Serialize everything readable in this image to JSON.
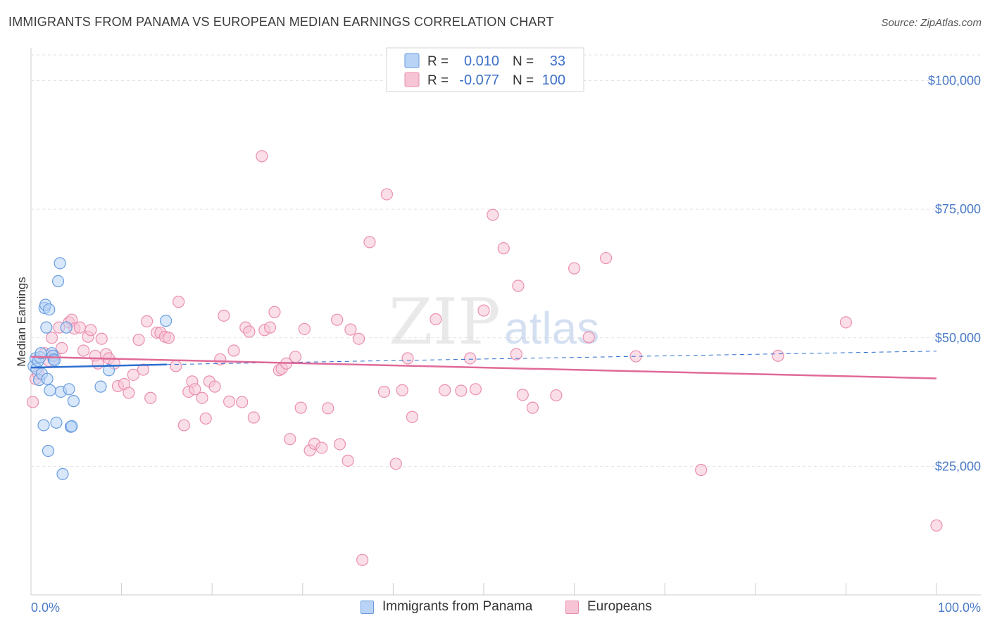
{
  "title": "IMMIGRANTS FROM PANAMA VS EUROPEAN MEDIAN EARNINGS CORRELATION CHART",
  "source": "Source: ZipAtlas.com",
  "watermark": {
    "zip": "ZIP",
    "atlas": "atlas"
  },
  "colors": {
    "blue_fill": "#b8d3f5",
    "blue_stroke": "#6a9de0",
    "blue_line": "#2e6fd0",
    "pink_fill": "#f7c4d5",
    "pink_stroke": "#ea8fb0",
    "pink_line": "#e06a98",
    "axis_text": "#4a7ac8"
  },
  "legend": {
    "rows": [
      {
        "r_label": "R =",
        "r_value": "0.010",
        "n_label": "N =",
        "n_value": "33"
      },
      {
        "r_label": "R =",
        "r_value": "-0.077",
        "n_label": "N =",
        "n_value": "100"
      }
    ]
  },
  "bottom_legend": {
    "series1": "Immigrants from Panama",
    "series2": "Europeans"
  },
  "chart_data": {
    "type": "scatter",
    "title": "IMMIGRANTS FROM PANAMA VS EUROPEAN MEDIAN EARNINGS CORRELATION CHART",
    "xlabel": "",
    "ylabel": "Median Earnings",
    "xlim": [
      0,
      100
    ],
    "ylim": [
      0,
      105000
    ],
    "x_tick_labels": [
      "0.0%",
      "100.0%"
    ],
    "y_ticks": [
      {
        "value": 25000,
        "label": "$25,000"
      },
      {
        "value": 50000,
        "label": "$50,000"
      },
      {
        "value": 75000,
        "label": "$75,000"
      },
      {
        "value": 100000,
        "label": "$100,000"
      }
    ],
    "series": [
      {
        "name": "Immigrants from Panama",
        "R": 0.01,
        "N": 33,
        "trend": {
          "x0": 0,
          "y0": 44200,
          "x1": 15,
          "y1": 44800,
          "dashed_to_x": 100,
          "dashed_to_y": 47400
        },
        "points": [
          [
            0.3,
            44500
          ],
          [
            0.5,
            46000
          ],
          [
            0.6,
            44000
          ],
          [
            0.8,
            45500
          ],
          [
            0.9,
            41800
          ],
          [
            1.0,
            46200
          ],
          [
            1.1,
            47000
          ],
          [
            1.2,
            43000
          ],
          [
            1.4,
            33000
          ],
          [
            1.5,
            55800
          ],
          [
            1.6,
            56400
          ],
          [
            1.7,
            52000
          ],
          [
            1.8,
            42000
          ],
          [
            1.9,
            28000
          ],
          [
            2.0,
            55500
          ],
          [
            2.1,
            39800
          ],
          [
            2.3,
            47000
          ],
          [
            2.4,
            46500
          ],
          [
            2.5,
            45800
          ],
          [
            2.6,
            45600
          ],
          [
            2.8,
            33500
          ],
          [
            3.0,
            61000
          ],
          [
            3.2,
            64500
          ],
          [
            3.3,
            39500
          ],
          [
            3.5,
            23500
          ],
          [
            3.9,
            52000
          ],
          [
            4.2,
            40000
          ],
          [
            4.4,
            32700
          ],
          [
            4.5,
            32800
          ],
          [
            4.7,
            37700
          ],
          [
            7.7,
            40500
          ],
          [
            8.6,
            43700
          ],
          [
            14.9,
            53300
          ]
        ]
      },
      {
        "name": "Europeans",
        "R": -0.077,
        "N": 100,
        "trend": {
          "x0": 0,
          "y0": 46300,
          "x1": 100,
          "y1": 42100
        },
        "points": [
          [
            0.2,
            37500
          ],
          [
            0.5,
            42000
          ],
          [
            0.8,
            43000
          ],
          [
            1.5,
            47000
          ],
          [
            2.0,
            45500
          ],
          [
            2.3,
            50000
          ],
          [
            2.6,
            46500
          ],
          [
            3.1,
            52000
          ],
          [
            3.4,
            48000
          ],
          [
            4.2,
            53000
          ],
          [
            4.5,
            53500
          ],
          [
            4.8,
            51800
          ],
          [
            5.4,
            52000
          ],
          [
            5.8,
            47500
          ],
          [
            6.3,
            50200
          ],
          [
            6.6,
            51500
          ],
          [
            7.1,
            46500
          ],
          [
            7.4,
            45000
          ],
          [
            7.8,
            49800
          ],
          [
            8.3,
            46800
          ],
          [
            8.6,
            46000
          ],
          [
            9.2,
            45000
          ],
          [
            9.6,
            40600
          ],
          [
            10.3,
            41000
          ],
          [
            10.8,
            39300
          ],
          [
            11.3,
            42800
          ],
          [
            11.9,
            49600
          ],
          [
            12.4,
            43800
          ],
          [
            12.8,
            53200
          ],
          [
            13.2,
            38300
          ],
          [
            13.9,
            51000
          ],
          [
            14.3,
            51000
          ],
          [
            14.8,
            50200
          ],
          [
            15.2,
            50000
          ],
          [
            16.0,
            44500
          ],
          [
            16.3,
            57000
          ],
          [
            16.9,
            33000
          ],
          [
            17.4,
            39500
          ],
          [
            17.8,
            41500
          ],
          [
            18.1,
            40000
          ],
          [
            18.9,
            38300
          ],
          [
            19.3,
            34300
          ],
          [
            19.7,
            41500
          ],
          [
            20.3,
            40500
          ],
          [
            20.9,
            45800
          ],
          [
            21.3,
            54300
          ],
          [
            21.9,
            37600
          ],
          [
            22.4,
            47500
          ],
          [
            23.3,
            37500
          ],
          [
            23.7,
            52000
          ],
          [
            24.1,
            51200
          ],
          [
            24.6,
            34500
          ],
          [
            25.5,
            85300
          ],
          [
            25.8,
            51500
          ],
          [
            26.4,
            52000
          ],
          [
            26.9,
            55000
          ],
          [
            27.4,
            43700
          ],
          [
            27.7,
            44000
          ],
          [
            28.2,
            45000
          ],
          [
            28.6,
            30300
          ],
          [
            29.2,
            46300
          ],
          [
            29.8,
            36400
          ],
          [
            30.2,
            51700
          ],
          [
            30.8,
            28100
          ],
          [
            31.3,
            29400
          ],
          [
            32.1,
            28600
          ],
          [
            32.8,
            36300
          ],
          [
            33.8,
            53500
          ],
          [
            34.1,
            29300
          ],
          [
            35.0,
            26100
          ],
          [
            35.3,
            51600
          ],
          [
            36.2,
            49800
          ],
          [
            36.6,
            6800
          ],
          [
            37.4,
            68600
          ],
          [
            39.0,
            39500
          ],
          [
            39.3,
            77900
          ],
          [
            40.3,
            25500
          ],
          [
            41.0,
            39800
          ],
          [
            41.6,
            46000
          ],
          [
            42.1,
            34600
          ],
          [
            44.7,
            53600
          ],
          [
            45.7,
            39800
          ],
          [
            47.5,
            39700
          ],
          [
            48.5,
            46000
          ],
          [
            49.1,
            40000
          ],
          [
            50.0,
            55300
          ],
          [
            51.0,
            73900
          ],
          [
            52.2,
            67400
          ],
          [
            53.6,
            46800
          ],
          [
            53.8,
            60100
          ],
          [
            54.3,
            38900
          ],
          [
            55.4,
            36400
          ],
          [
            58.0,
            38800
          ],
          [
            60.0,
            63500
          ],
          [
            61.6,
            50100
          ],
          [
            63.5,
            65500
          ],
          [
            66.8,
            46400
          ],
          [
            74.0,
            24300
          ],
          [
            82.5,
            46500
          ],
          [
            90.0,
            53000
          ],
          [
            100.0,
            13500
          ]
        ]
      }
    ]
  }
}
